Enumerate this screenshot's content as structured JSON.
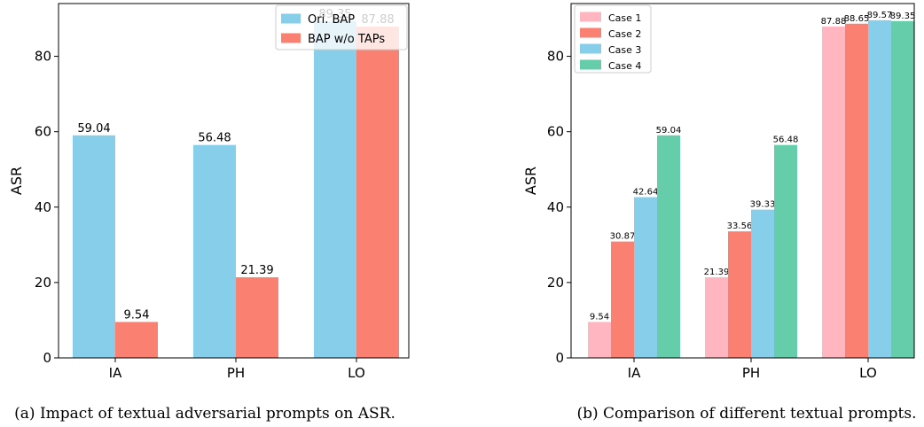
{
  "chart_data": [
    {
      "type": "bar",
      "caption": "(a) Impact of textual adversarial prompts on ASR.",
      "categories": [
        "IA",
        "PH",
        "LO"
      ],
      "ylabel": "ASR",
      "ylim": [
        0,
        94
      ],
      "yticks": [
        0,
        20,
        40,
        60,
        80
      ],
      "legend_position": "top-right",
      "series": [
        {
          "name": "Ori. BAP",
          "color": "#87ceeb",
          "values": [
            59.04,
            56.48,
            89.35
          ],
          "labels": [
            "59.04",
            "56.48",
            "89.35"
          ]
        },
        {
          "name": "BAP w/o TAPs",
          "color": "#fa8072",
          "values": [
            9.54,
            21.39,
            87.88
          ],
          "labels": [
            "9.54",
            "21.39",
            "87.88"
          ]
        }
      ]
    },
    {
      "type": "bar",
      "caption": "(b) Comparison of different textual prompts.",
      "categories": [
        "IA",
        "PH",
        "LO"
      ],
      "ylabel": "ASR",
      "ylim": [
        0,
        94
      ],
      "yticks": [
        0,
        20,
        40,
        60,
        80
      ],
      "legend_position": "top-left",
      "series": [
        {
          "name": "Case 1",
          "color": "#ffb6c1",
          "values": [
            9.54,
            21.39,
            87.88
          ],
          "labels": [
            "9.54",
            "21.39",
            "87.88"
          ]
        },
        {
          "name": "Case 2",
          "color": "#fa8072",
          "values": [
            30.87,
            33.56,
            88.65
          ],
          "labels": [
            "30.87",
            "33.56",
            "88.65"
          ]
        },
        {
          "name": "Case 3",
          "color": "#87ceeb",
          "values": [
            42.64,
            39.33,
            89.57
          ],
          "labels": [
            "42.64",
            "39.33",
            "89.57"
          ]
        },
        {
          "name": "Case 4",
          "color": "#66cdaa",
          "values": [
            59.04,
            56.48,
            89.35
          ],
          "labels": [
            "59.04",
            "56.48",
            "89.35"
          ]
        }
      ]
    }
  ]
}
